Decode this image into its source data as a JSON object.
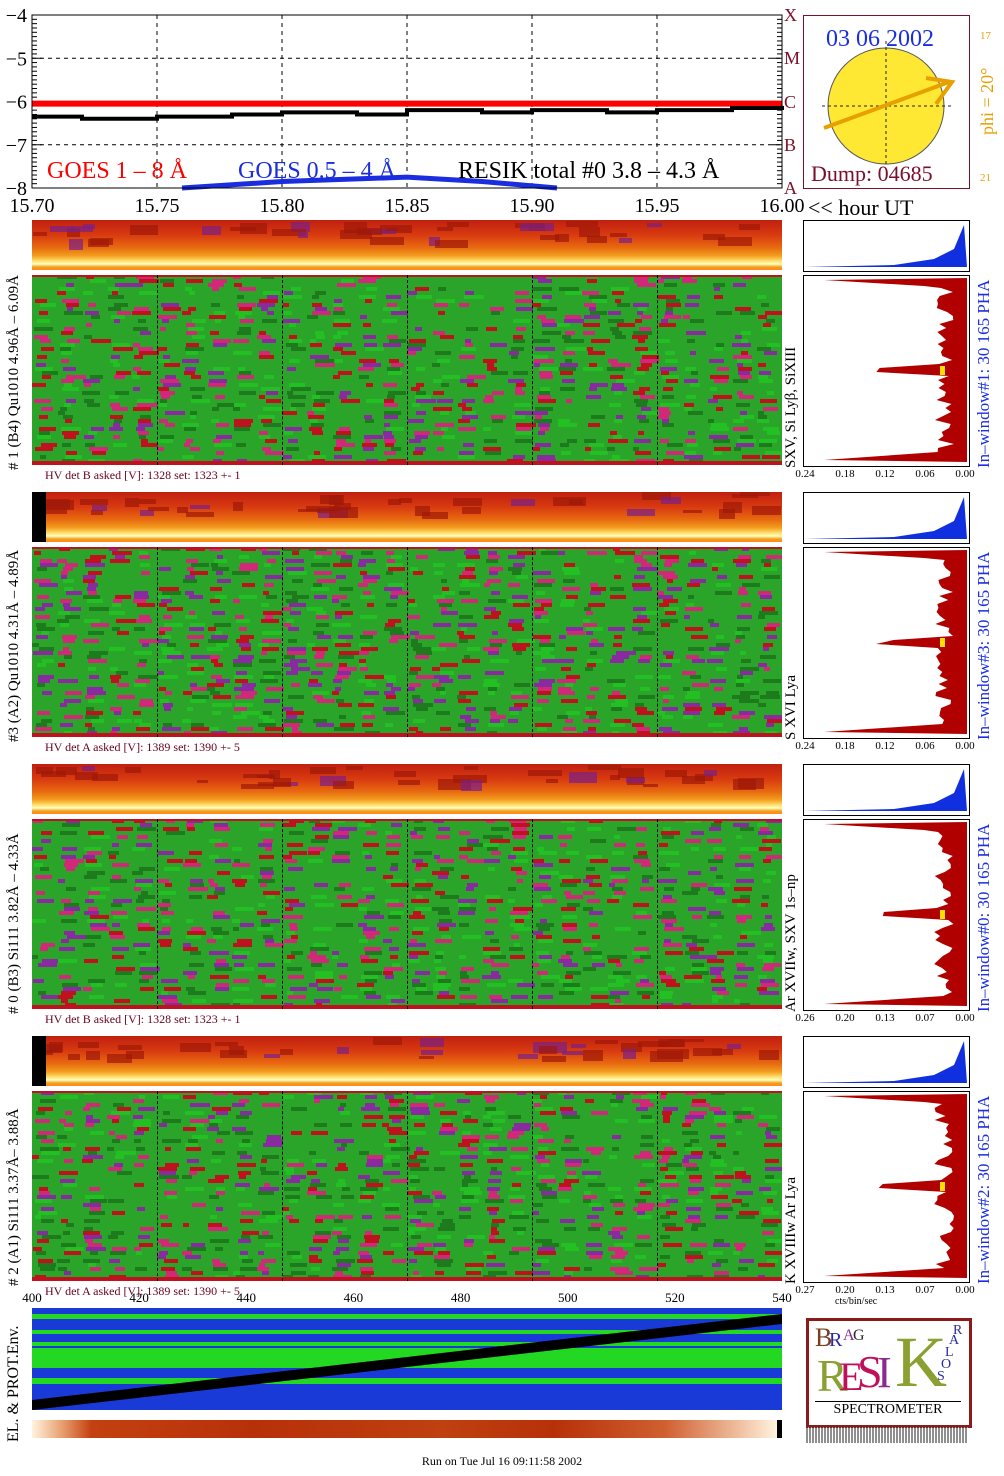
{
  "header": {
    "date": "03 06 2002",
    "dump": "Dump: 04685",
    "phi": "phi = 20°",
    "phi_ticks": [
      "17",
      "21"
    ],
    "goes_labels": [
      "GOES 1 – 8 Å",
      "GOES 0.5 – 4 Å",
      "RESIK total #0  3.8 – 4.3 Å"
    ],
    "flare_classes": [
      "A",
      "B",
      "C",
      "M",
      "X"
    ],
    "time_axis_label": "<< hour UT",
    "time_ticks": [
      "15.70",
      "15.75",
      "15.80",
      "15.85",
      "15.90",
      "15.95",
      "16.00"
    ]
  },
  "panels": [
    {
      "label": "# 1 (B4) Qu1010 4.96Å – 6.09Å",
      "line_label": "SXV, Si Lyβ, SiXIII",
      "hv": "HV det B asked [V]:  1328 set:  1323  +-     1",
      "window": "In–window#1:   30 165 PHA",
      "pha_ticks": [
        "0.24",
        "0.18",
        "0.12",
        "0.06",
        "0.00"
      ]
    },
    {
      "label": "#3 (A2) Qu1010  4.31Å – 4.89Å",
      "line_label": "S XVI Lya",
      "hv": "HV det A asked [V]:  1389 set:  1390  +-     5",
      "window": "In–window#3:   30 165 PHA",
      "pha_ticks": [
        "0.24",
        "0.18",
        "0.12",
        "0.06",
        "0.00"
      ]
    },
    {
      "label": "# 0 (B3) Si111  3.82Å – 4.33Å",
      "line_label": "Ar XVIIw, SXV 1s–np",
      "hv": "HV det B asked [V]:  1328 set:  1323  +-     1",
      "window": "In–window#0:   30 165 PHA",
      "pha_ticks": [
        "0.26",
        "0.20",
        "0.13",
        "0.07",
        "0.00"
      ]
    },
    {
      "label": "# 2 (A1) Si111  3.37Å– 3.88Å",
      "line_label": "K XVIIIw  Ar Lya",
      "hv": "HV det A asked [V]:  1389 set:  1390  +-     5",
      "window": "In–window#2:   30 165 PHA",
      "pha_ticks": [
        "0.27",
        "0.20",
        "0.13",
        "0.07",
        "0.00"
      ]
    }
  ],
  "pha_xlabel": "cts/bin/sec",
  "env": {
    "label": "EL. & PROT.Env.",
    "ticks": [
      "400",
      "420",
      "440",
      "460",
      "480",
      "500",
      "520",
      "540"
    ]
  },
  "logo": {
    "letters": [
      "B",
      "R",
      "A",
      "G",
      "R",
      "E",
      "S",
      "I",
      "K",
      "S",
      "O",
      "L",
      "A",
      "R"
    ],
    "text": "SPECTROMETER"
  },
  "footer": "Run on Tue Jul 16 09:11:58 2002",
  "colors": {
    "goes_long": "#ff0000",
    "goes_short": "#1a2ee0",
    "resik": "#000000",
    "spec_green": "#2aa52a",
    "spec_red": "#c0121e",
    "pha_red": "#b00000",
    "pha_blue": "#1030e0",
    "label_blue": "#1a2ee0",
    "label_dark": "#7a0f2a"
  },
  "chart_data": {
    "type": "line",
    "xlabel": "<< hour UT",
    "xlim": [
      15.7,
      16.0
    ],
    "ylim": [
      -8,
      -4
    ],
    "y_ticks": [
      -4,
      -5,
      -6,
      -7,
      -8
    ],
    "grid": true,
    "series": [
      {
        "name": "GOES 1 – 8 Å",
        "x": [
          15.7,
          15.75,
          15.8,
          15.85,
          15.9,
          15.95,
          16.0
        ],
        "y": [
          -6.05,
          -6.05,
          -6.05,
          -6.05,
          -6.05,
          -6.05,
          -6.05
        ]
      },
      {
        "name": "GOES 0.5 – 4 Å",
        "x": [
          15.76,
          15.8,
          15.85,
          15.88,
          15.91
        ],
        "y": [
          -8.0,
          -7.85,
          -7.75,
          -7.85,
          -8.0
        ]
      },
      {
        "name": "RESIK total #0  3.8 – 4.3 Å",
        "x": [
          15.7,
          15.72,
          15.75,
          15.78,
          15.8,
          15.83,
          15.85,
          15.88,
          15.9,
          15.93,
          15.95,
          15.98,
          16.0
        ],
        "y": [
          -6.35,
          -6.4,
          -6.35,
          -6.3,
          -6.25,
          -6.3,
          -6.2,
          -6.25,
          -6.2,
          -6.25,
          -6.2,
          -6.15,
          -6.1
        ]
      }
    ]
  }
}
